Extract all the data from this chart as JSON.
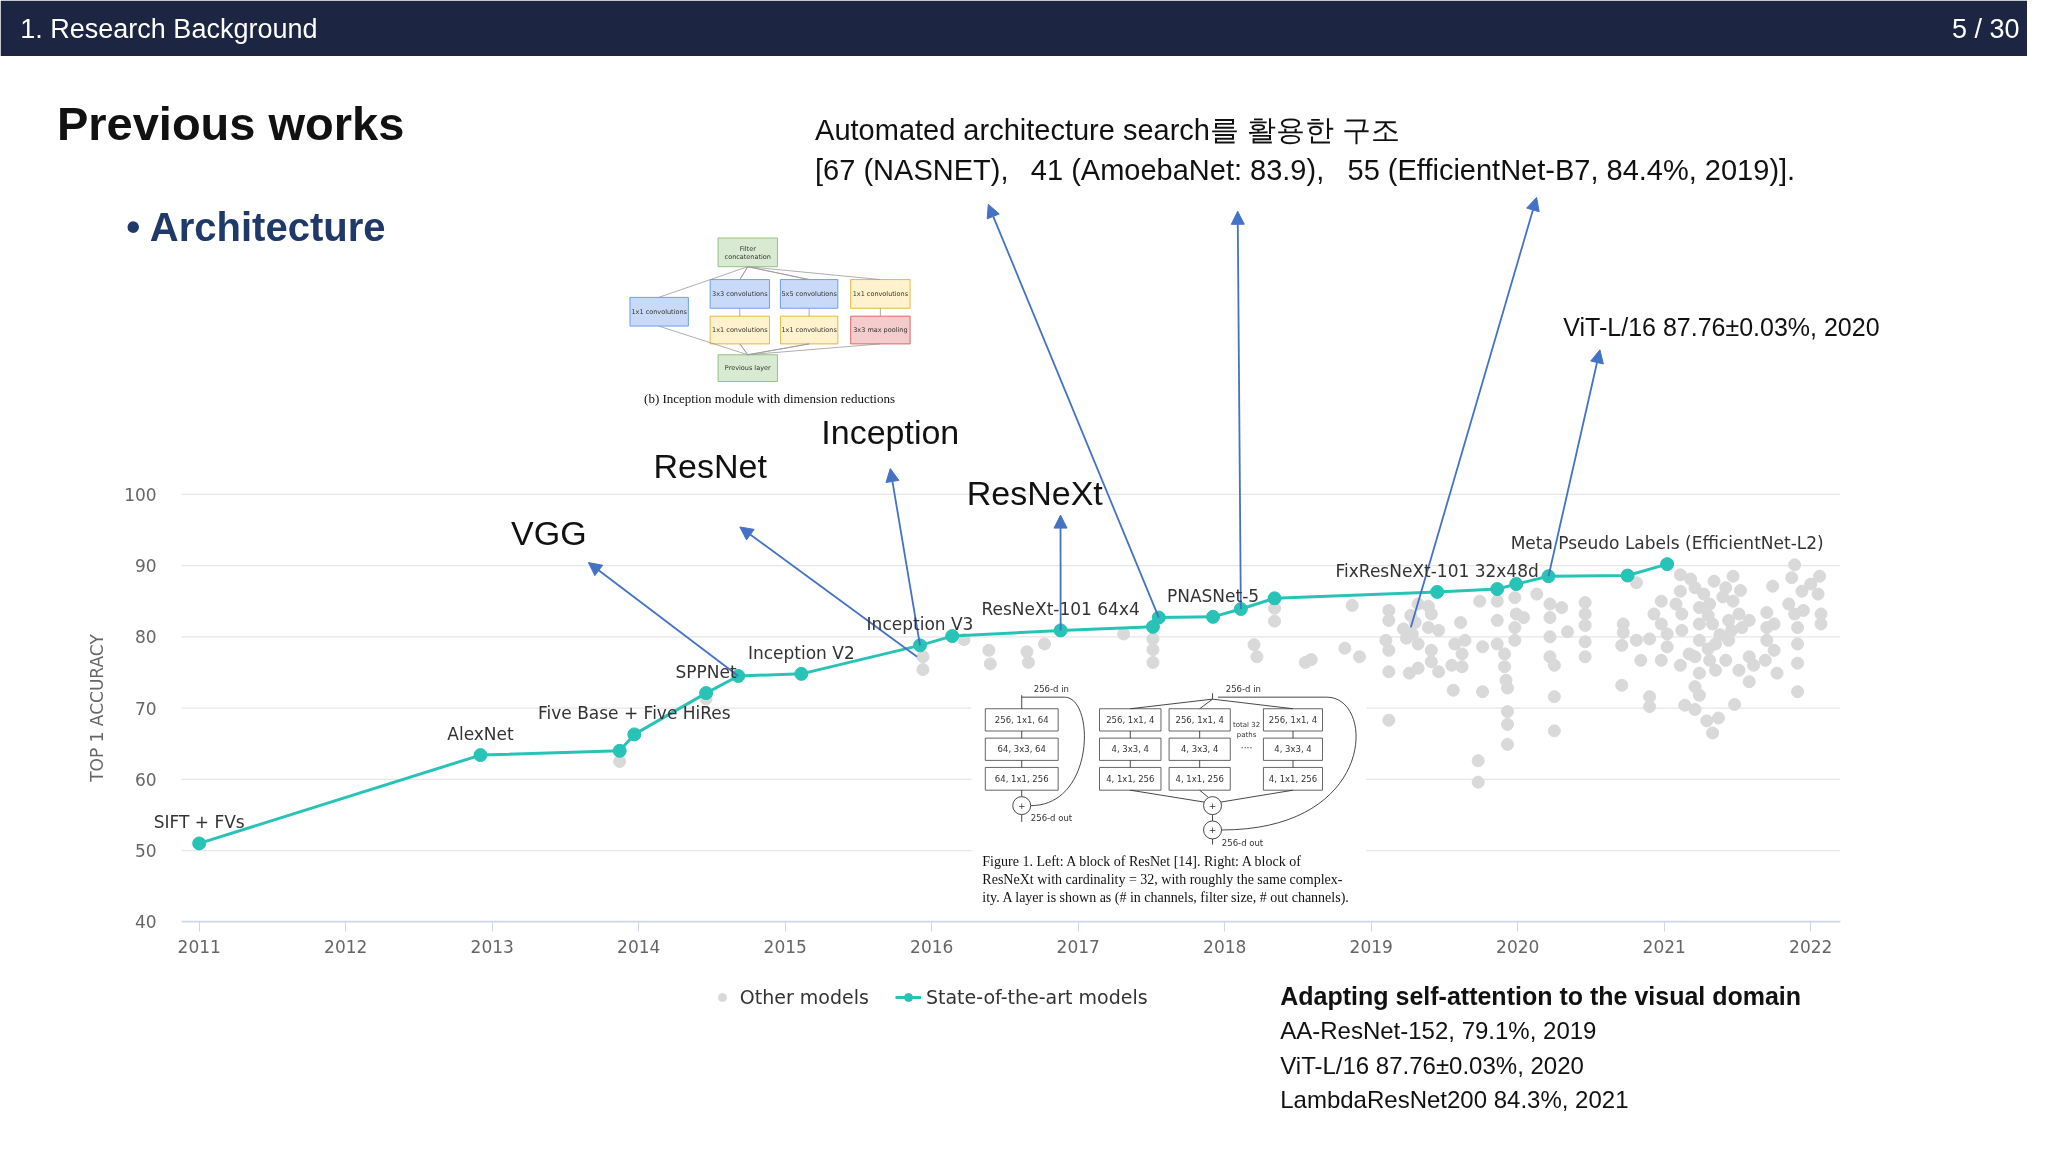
{
  "chart_data": {
    "type": "scatter",
    "title": "Previous works",
    "subtitle": "• Architecture",
    "ylabel": "TOP 1 ACCURACY",
    "xlim": [
      2010.88,
      2022.2
    ],
    "xticks": [
      2011,
      2012,
      2013,
      2014,
      2015,
      2016,
      2017,
      2018,
      2019,
      2020,
      2021,
      2022
    ],
    "ylim": [
      40,
      100
    ],
    "yticks": [
      40,
      50,
      60,
      70,
      80,
      90,
      100
    ],
    "grid": "y",
    "legend": "bottom",
    "marker": "circle",
    "series": [
      {
        "name": "Other models",
        "color": "#d9d9d9",
        "x": [
          2013.87,
          2014.46,
          2015.94,
          2015.94,
          2016.22,
          2016.39,
          2016.4,
          2016.65,
          2016.66,
          2016.77,
          2017.31,
          2017.51,
          2017.51,
          2017.51,
          2018.2,
          2018.22,
          2018.34,
          2018.34,
          2018.55,
          2018.59,
          2018.82,
          2018.87,
          2018.92,
          2019.12,
          2019.12,
          2019.1,
          2019.12,
          2019.12,
          2019.12,
          2019.27,
          2019.22,
          2019.32,
          2019.39,
          2019.41,
          2019.28,
          2019.32,
          2019.39,
          2019.46,
          2019.41,
          2019.26,
          2019.32,
          2019.41,
          2019.46,
          2019.55,
          2019.61,
          2019.57,
          2019.64,
          2019.62,
          2019.62,
          2019.56,
          2019.74,
          2019.76,
          2019.76,
          2019.73,
          2019.73,
          2019.86,
          2019.86,
          2019.86,
          2019.91,
          2019.91,
          2019.92,
          2019.93,
          2019.93,
          2019.93,
          2019.93,
          2019.98,
          2019.99,
          2019.98,
          2019.98,
          2020.04,
          2020.13,
          2020.22,
          2020.22,
          2020.3,
          2020.22,
          2020.22,
          2020.25,
          2020.25,
          2020.25,
          2020.34,
          2020.46,
          2020.46,
          2020.46,
          2020.46,
          2020.46,
          2020.72,
          2020.72,
          2020.71,
          2020.71,
          2020.81,
          2020.84,
          2020.9,
          2020.81,
          2020.9,
          2020.9,
          2020.93,
          2020.98,
          2020.98,
          2020.98,
          2021.02,
          2021.02,
          2021.08,
          2021.11,
          2021.11,
          2021.12,
          2021.12,
          2021.11,
          2021.17,
          2021.21,
          2021.24,
          2021.24,
          2021.24,
          2021.21,
          2021.24,
          2021.21,
          2021.24,
          2021.21,
          2021.29,
          2021.33,
          2021.37,
          2021.48,
          2021.34,
          2021.31,
          2021.33,
          2021.35,
          2021.31,
          2021.35,
          2021.42,
          2021.47,
          2021.47,
          2021.44,
          2021.51,
          2021.44,
          2021.42,
          2021.51,
          2021.53,
          2021.58,
          2021.58,
          2021.58,
          2021.61,
          2021.69,
          2021.7,
          2021.7,
          2021.7,
          2021.75,
          2021.77,
          2021.74,
          2021.75,
          2021.89,
          2021.87,
          2021.85,
          2021.89,
          2021.94,
          2021.91,
          2021.91,
          2021.91,
          2021.91,
          2022.0,
          2022.06,
          2022.05,
          2022.07,
          2022.07,
          2021.95,
          2021.14,
          2021.18,
          2021.27,
          2021.3,
          2021.4,
          2021.52,
          2021.38,
          2021.3,
          2021.46,
          2019.3,
          2019.24
        ],
        "values": [
          62.5,
          71.3,
          77.2,
          75.4,
          79.6,
          78.1,
          76.2,
          77.9,
          76.4,
          79.0,
          80.4,
          79.7,
          78.2,
          76.4,
          78.9,
          77.2,
          84.0,
          82.2,
          76.4,
          76.8,
          78.4,
          84.4,
          77.2,
          83.7,
          82.3,
          79.5,
          78.1,
          75.1,
          68.3,
          83.0,
          81.1,
          84.6,
          84.3,
          83.2,
          80.4,
          79.0,
          81.3,
          80.9,
          78.1,
          74.9,
          75.6,
          76.5,
          75.1,
          76.0,
          82.0,
          79.0,
          79.5,
          77.6,
          75.8,
          72.5,
          85.0,
          78.6,
          72.3,
          62.6,
          59.6,
          85.0,
          82.3,
          79.0,
          77.6,
          75.8,
          73.9,
          72.8,
          69.5,
          67.7,
          64.9,
          85.5,
          83.2,
          81.3,
          79.5,
          82.7,
          86.0,
          84.6,
          82.7,
          84.1,
          80.0,
          77.2,
          76.0,
          71.6,
          66.8,
          80.7,
          84.8,
          83.2,
          81.6,
          79.3,
          77.2,
          81.8,
          80.6,
          78.8,
          73.2,
          79.5,
          76.7,
          79.7,
          87.6,
          71.6,
          70.2,
          83.2,
          85.0,
          81.8,
          76.7,
          80.4,
          78.6,
          84.6,
          88.7,
          86.4,
          83.2,
          80.9,
          76.0,
          77.6,
          86.9,
          84.1,
          81.8,
          79.5,
          77.2,
          74.9,
          73.0,
          71.8,
          69.8,
          68.2,
          66.5,
          68.6,
          70.5,
          87.8,
          84.6,
          81.8,
          79.0,
          76.7,
          75.3,
          86.9,
          88.5,
          85.0,
          82.3,
          83.2,
          79.5,
          76.7,
          75.3,
          81.3,
          82.3,
          77.2,
          73.7,
          76.0,
          76.7,
          83.4,
          81.3,
          79.5,
          78.1,
          74.9,
          87.1,
          81.8,
          90.1,
          88.3,
          84.6,
          83.2,
          86.4,
          81.3,
          79.0,
          76.3,
          72.3,
          87.4,
          88.5,
          86.0,
          83.2,
          81.8,
          83.7,
          70.4,
          88.1,
          86.0,
          83.0,
          85.6,
          86.5,
          80.3,
          78.3,
          80.9,
          82.0,
          79.8
        ]
      },
      {
        "name": "State-of-the-art models",
        "type": "line",
        "color": "#27c3b6",
        "x": [
          2011.0,
          2012.92,
          2013.87,
          2013.97,
          2014.46,
          2014.68,
          2015.11,
          2015.92,
          2016.14,
          2016.88,
          2017.51,
          2017.55,
          2017.92,
          2018.11,
          2018.34,
          2019.45,
          2019.86,
          2019.99,
          2020.21,
          2020.75,
          2021.02
        ],
        "values": [
          51.0,
          63.4,
          64.0,
          66.3,
          72.1,
          74.5,
          74.8,
          78.8,
          80.1,
          80.9,
          81.4,
          82.7,
          82.8,
          83.9,
          85.4,
          86.3,
          86.7,
          87.4,
          88.5,
          88.6,
          90.2
        ]
      }
    ],
    "annotations": [
      "1. Research Background",
      "5 / 30",
      "Automated architecture search를 활용한 구조",
      {
        "text": "[67 (NASNET),",
        "x": 2017.55,
        "y": 82.7
      },
      {
        "text": "41 (AmoebaNet: 83.9),",
        "x": 2018.11,
        "y": 83.9
      },
      {
        "text": "55 (EfficientNet-B7, 84.4%, 2019)].",
        "x": 2019.27,
        "y": 81.3
      },
      {
        "text": "ViT-L/16 87.76±0.03%, 2020",
        "x": 2020.21,
        "y": 88.5
      },
      {
        "text": "VGG",
        "x": 2014.68,
        "y": 74.5
      },
      {
        "text": "ResNet",
        "x": 2015.9,
        "y": 77.2
      },
      {
        "text": "Inception",
        "x": 2015.92,
        "y": 78.8
      },
      {
        "text": "ResNeXt",
        "x": 2016.88,
        "y": 80.9
      },
      {
        "text": "SIFT + FVs",
        "x": 2011.0,
        "y": 51.0
      },
      {
        "text": "AlexNet",
        "x": 2012.92,
        "y": 63.4
      },
      {
        "text": "Five Base + Five HiRes",
        "x": 2013.97,
        "y": 66.3
      },
      {
        "text": "SPPNet",
        "x": 2014.46,
        "y": 72.1
      },
      {
        "text": "Inception V2",
        "x": 2015.11,
        "y": 74.8
      },
      {
        "text": "Inception V3",
        "x": 2015.92,
        "y": 78.8
      },
      {
        "text": "ResNeXt-101 64x4",
        "x": 2016.88,
        "y": 80.9
      },
      {
        "text": "PNASNet-5",
        "x": 2017.92,
        "y": 82.8
      },
      {
        "text": "FixResNeXt-101 32x48d",
        "x": 2019.45,
        "y": 86.3
      },
      {
        "text": "Meta Pseudo Labels (EfficientNet-L2)",
        "x": 2021.02,
        "y": 90.2
      },
      "Adapting self-attention to the visual domain",
      "AA-ResNet-152, 79.1%, 2019",
      "ViT-L/16 87.76±0.03%, 2020",
      "LambdaResNet200 84.3%, 2021",
      "Filter",
      "concatenation",
      "1x1 convolutions",
      "3x3 convolutions",
      "5x5 convolutions",
      "1x1 convolutions",
      "1x1 convolutions",
      "1x1 convolutions",
      "3x3 max pooling",
      "Previous layer",
      "(b) Inception module with dimension reductions",
      "256-d in",
      "256, 1x1, 64",
      "64, 3x3, 64",
      "64, 1x1, 256",
      "+",
      "256-d out",
      "256-d in",
      "256, 1x1, 4",
      "256, 1x1, 4",
      "256, 1x1, 4",
      "4, 3x3, 4",
      "4, 3x3, 4",
      "4, 3x3, 4",
      "4, 1x1, 256",
      "4, 1x1, 256",
      "4, 1x1, 256",
      "total 32",
      "paths",
      "····",
      "+",
      "+",
      "256-d out",
      "Figure 1. Left: A block of ResNet [14]. Right: A block of",
      "ResNeXt with cardinality = 32, with roughly the same complex-",
      "ity. A layer is shown as (# in channels, filter size, # out channels)."
    ]
  }
}
